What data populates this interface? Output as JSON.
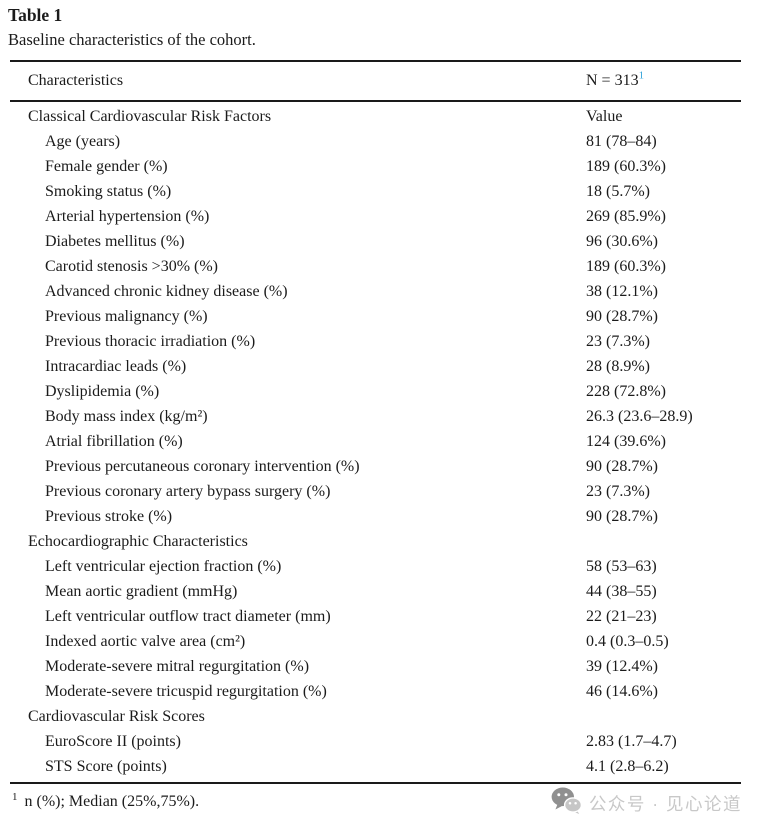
{
  "page": {
    "title": "Table 1",
    "subtitle": "Baseline characteristics of the cohort."
  },
  "table": {
    "header": {
      "characteristics": "Characteristics",
      "n_label": "N = 313",
      "n_superscript": "1"
    },
    "rows": [
      {
        "type": "section",
        "label": "Classical Cardiovascular Risk Factors",
        "value": "Value"
      },
      {
        "type": "item",
        "label": "Age (years)",
        "value": "81 (78–84)"
      },
      {
        "type": "item",
        "label": "Female gender (%)",
        "value": "189 (60.3%)"
      },
      {
        "type": "item",
        "label": "Smoking status (%)",
        "value": "18 (5.7%)"
      },
      {
        "type": "item",
        "label": "Arterial hypertension (%)",
        "value": "269 (85.9%)"
      },
      {
        "type": "item",
        "label": "Diabetes mellitus (%)",
        "value": "96 (30.6%)"
      },
      {
        "type": "item",
        "label": "Carotid stenosis >30% (%)",
        "value": "189 (60.3%)"
      },
      {
        "type": "item",
        "label": "Advanced chronic kidney disease (%)",
        "value": "38 (12.1%)"
      },
      {
        "type": "item",
        "label": "Previous malignancy (%)",
        "value": "90 (28.7%)"
      },
      {
        "type": "item",
        "label": "Previous thoracic irradiation (%)",
        "value": "23 (7.3%)"
      },
      {
        "type": "item",
        "label": "Intracardiac leads (%)",
        "value": "28 (8.9%)"
      },
      {
        "type": "item",
        "label": "Dyslipidemia (%)",
        "value": "228 (72.8%)"
      },
      {
        "type": "item",
        "label": "Body mass index (kg/m²)",
        "value": "26.3 (23.6–28.9)"
      },
      {
        "type": "item",
        "label": "Atrial fibrillation (%)",
        "value": "124 (39.6%)"
      },
      {
        "type": "item",
        "label": "Previous percutaneous coronary intervention (%)",
        "value": "90 (28.7%)"
      },
      {
        "type": "item",
        "label": "Previous coronary artery bypass surgery (%)",
        "value": "23 (7.3%)"
      },
      {
        "type": "item",
        "label": "Previous stroke (%)",
        "value": "90 (28.7%)"
      },
      {
        "type": "section",
        "label": "Echocardiographic Characteristics",
        "value": ""
      },
      {
        "type": "item",
        "label": "Left ventricular ejection fraction (%)",
        "value": "58 (53–63)"
      },
      {
        "type": "item",
        "label": "Mean aortic gradient (mmHg)",
        "value": "44 (38–55)"
      },
      {
        "type": "item",
        "label": "Left ventricular outflow tract diameter (mm)",
        "value": "22 (21–23)"
      },
      {
        "type": "item",
        "label": "Indexed aortic valve area (cm²)",
        "value": "0.4 (0.3–0.5)"
      },
      {
        "type": "item",
        "label": "Moderate-severe mitral regurgitation (%)",
        "value": "39 (12.4%)"
      },
      {
        "type": "item",
        "label": "Moderate-severe tricuspid regurgitation (%)",
        "value": "46 (14.6%)"
      },
      {
        "type": "section",
        "label": "Cardiovascular Risk Scores",
        "value": ""
      },
      {
        "type": "item",
        "label": "EuroScore II (points)",
        "value": "2.83 (1.7–4.7)"
      },
      {
        "type": "item",
        "label": "STS Score (points)",
        "value": "4.1 (2.8–6.2)"
      }
    ]
  },
  "footnote": {
    "marker": "1",
    "text": "n (%); Median (25%,75%)."
  },
  "watermark": {
    "icon": "wechat-icon",
    "text": "公众号 · 见心论道"
  },
  "colors": {
    "accent_blue": "#35a4da",
    "text": "#1b1b1b",
    "rule": "#1a1a1a",
    "watermark_gray": "#c8c8c8",
    "watermark_icon_dark": "#909090",
    "watermark_icon_light": "#c6c6c6"
  }
}
